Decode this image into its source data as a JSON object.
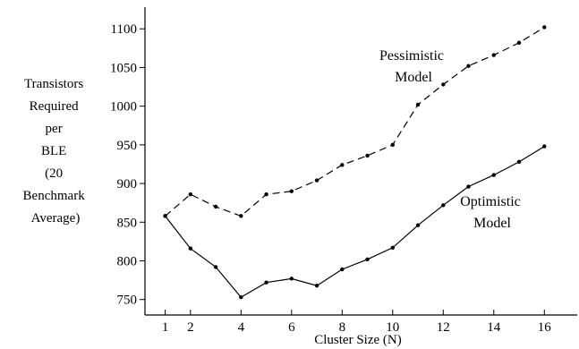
{
  "chart_data": {
    "type": "line",
    "title": "",
    "xlabel": "Cluster Size (N)",
    "ylabel_lines": [
      "Transistors",
      "Required",
      "per",
      "BLE",
      "(20",
      "Benchmark",
      "Average)"
    ],
    "x_ticks": [
      1,
      2,
      4,
      6,
      8,
      10,
      12,
      14,
      16
    ],
    "y_ticks": [
      750,
      800,
      850,
      900,
      950,
      1000,
      1050,
      1100
    ],
    "xlim": [
      0.2,
      17.3
    ],
    "ylim": [
      730,
      1128
    ],
    "grid": false,
    "series": [
      {
        "name": "Pessimistic Model",
        "label_lines": [
          "Pessimistic",
          "Model"
        ],
        "line_style": "dashed",
        "x": [
          1,
          2,
          3,
          4,
          5,
          6,
          7,
          8,
          9,
          10,
          11,
          12,
          13,
          14,
          15,
          16
        ],
        "values": [
          858,
          886,
          870,
          858,
          886,
          890,
          904,
          924,
          936,
          950,
          1002,
          1028,
          1052,
          1066,
          1082,
          1102
        ]
      },
      {
        "name": "Optimistic Model",
        "label_lines": [
          "Optimistic",
          "Model"
        ],
        "line_style": "solid",
        "x": [
          1,
          2,
          3,
          4,
          5,
          6,
          7,
          8,
          9,
          10,
          11,
          12,
          13,
          14,
          15,
          16
        ],
        "values": [
          858,
          816,
          792,
          753,
          772,
          777,
          768,
          789,
          802,
          817,
          846,
          872,
          896,
          911,
          928,
          948
        ]
      }
    ]
  }
}
